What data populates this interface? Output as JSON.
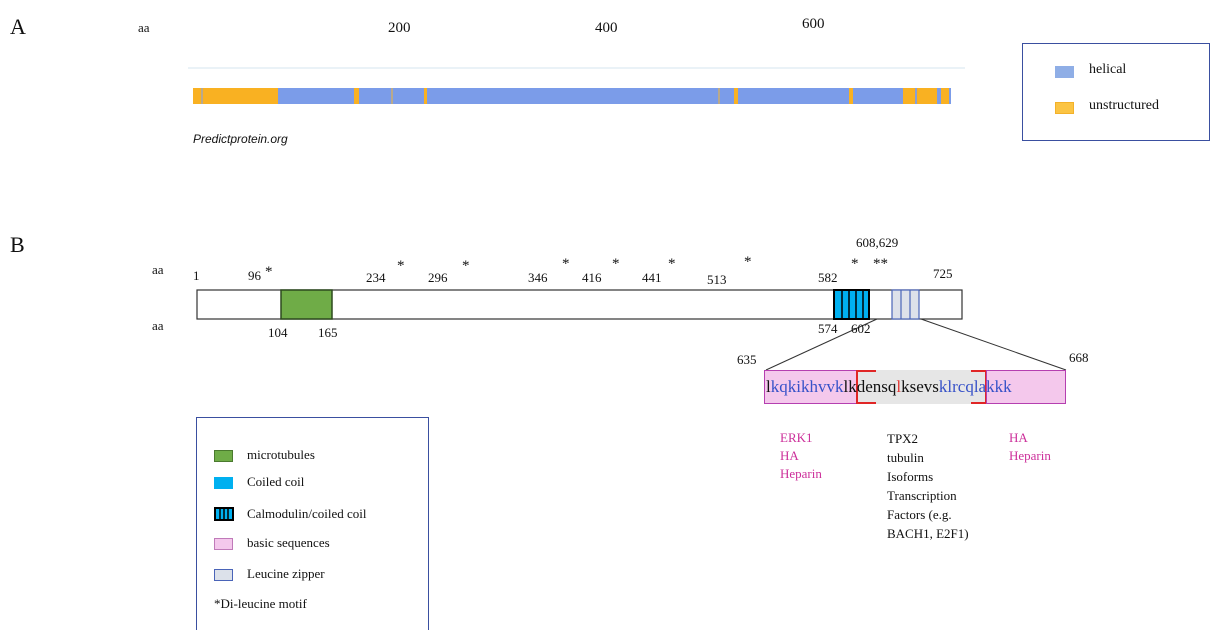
{
  "panelA": {
    "label": "A",
    "axis_label": "aa",
    "ticks": [
      "200",
      "400",
      "600"
    ],
    "credit": "Predictprotein.org",
    "legend": [
      {
        "label": "helical",
        "color": "#8faee6"
      },
      {
        "label": "unstructured",
        "color": "#fbc443"
      }
    ],
    "colors": {
      "helical": "#7b9ce9",
      "unstructured": "#f9b122"
    }
  },
  "panelB": {
    "label": "B",
    "aa_top": "aa",
    "aa_bottom": "aa",
    "positions_top": {
      "p1": "1",
      "p96": "96",
      "p234": "234",
      "p296": "296",
      "p346": "346",
      "p416": "416",
      "p441": "441",
      "p513": "513",
      "p582": "582",
      "p608_629": "608,629",
      "p725": "725"
    },
    "positions_bottom": {
      "p104": "104",
      "p165": "165",
      "p574": "574",
      "p602": "602"
    },
    "star": "*",
    "double_star": "**",
    "zoom": {
      "start": "635",
      "end": "668",
      "segments": [
        "l",
        "kqkikhvvk",
        "lk",
        "densq",
        "l",
        "ksevs",
        "kl",
        "rcqlakkk"
      ],
      "annotations": {
        "left": [
          "ERK1",
          "HA",
          "Heparin"
        ],
        "middle": [
          "TPX2",
          "tubulin",
          "Isoforms",
          "Transcription",
          "Factors (e.g.",
          "BACH1, E2F1)"
        ],
        "right": [
          "HA",
          "Heparin"
        ]
      }
    },
    "legend": [
      {
        "label": "microtubules",
        "color": "#6fac47"
      },
      {
        "label": "Coiled coil",
        "color": "#00b0f0"
      },
      {
        "label": "Calmodulin/coiled coil",
        "color": "#00b0f0"
      },
      {
        "label": "basic sequences",
        "color": "#f4c8ec"
      },
      {
        "label": "Leucine zipper",
        "color": "#dce1ea"
      }
    ],
    "legend_note": "*Di-leucine motif"
  }
}
